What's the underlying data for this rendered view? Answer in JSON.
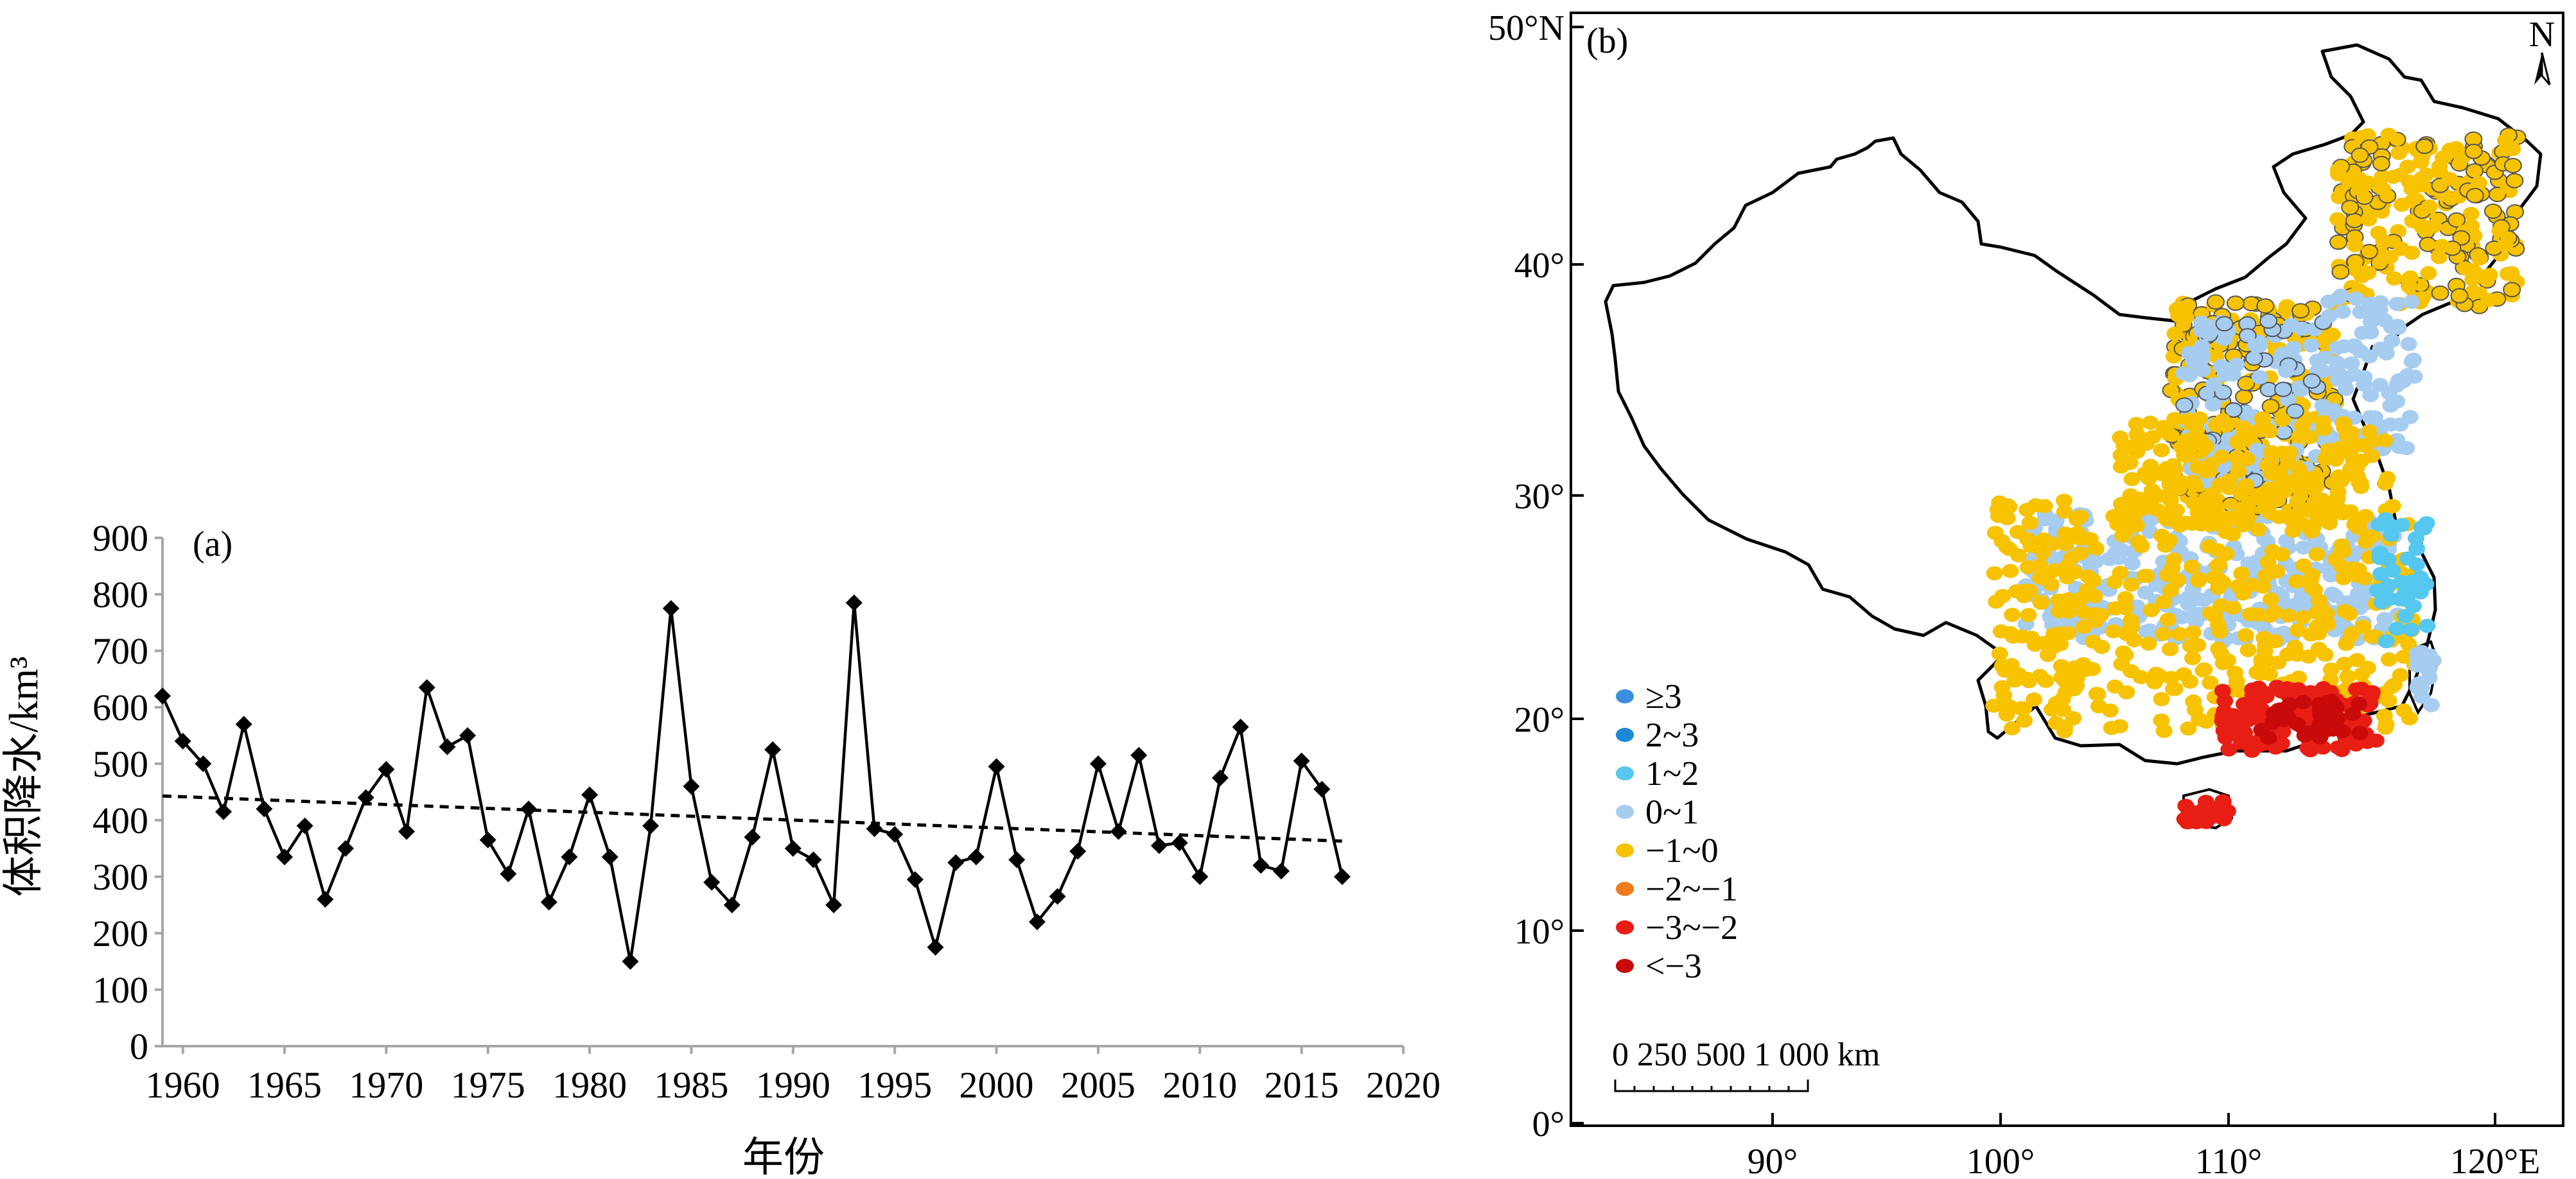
{
  "chart_data": [
    {
      "type": "line",
      "panel_label": "(a)",
      "xlabel": "年份",
      "ylabel": "体积降水/km³",
      "xlim": [
        1959,
        2020
      ],
      "ylim": [
        0,
        900
      ],
      "x_ticks": [
        "1960",
        "1965",
        "1970",
        "1975",
        "1980",
        "1985",
        "1990",
        "1995",
        "2000",
        "2005",
        "2010",
        "2015",
        "2020"
      ],
      "y_ticks": [
        "0",
        "100",
        "200",
        "300",
        "400",
        "500",
        "600",
        "700",
        "800",
        "900"
      ],
      "grid": false,
      "x": [
        1959,
        1960,
        1961,
        1962,
        1963,
        1964,
        1965,
        1966,
        1967,
        1968,
        1969,
        1970,
        1971,
        1972,
        1973,
        1974,
        1975,
        1976,
        1977,
        1978,
        1979,
        1980,
        1981,
        1982,
        1983,
        1984,
        1985,
        1986,
        1987,
        1988,
        1989,
        1990,
        1991,
        1992,
        1993,
        1994,
        1995,
        1996,
        1997,
        1998,
        1999,
        2000,
        2001,
        2002,
        2003,
        2004,
        2005,
        2006,
        2007,
        2008,
        2009,
        2010,
        2011,
        2012,
        2013,
        2014,
        2015,
        2016,
        2017
      ],
      "values": [
        620,
        540,
        500,
        415,
        570,
        420,
        335,
        390,
        260,
        350,
        440,
        490,
        380,
        635,
        530,
        550,
        365,
        305,
        420,
        255,
        335,
        445,
        335,
        150,
        390,
        775,
        460,
        290,
        250,
        370,
        525,
        350,
        330,
        250,
        785,
        385,
        375,
        295,
        175,
        325,
        335,
        495,
        330,
        220,
        265,
        345,
        500,
        380,
        515,
        355,
        360,
        300,
        475,
        565,
        320,
        310,
        505,
        455,
        300
      ],
      "trend": {
        "x": [
          1959,
          2017
        ],
        "y": [
          443,
          363
        ]
      }
    },
    {
      "type": "scatter",
      "panel_label": "(b)",
      "y_ticks": [
        "50°N",
        "40°",
        "30°",
        "20°",
        "10°",
        "0°"
      ],
      "x_ticks": [
        "90°",
        "100°",
        "110°",
        "120°E"
      ],
      "north_label": "N",
      "scale_label": "0 250 500 1 000 km",
      "legend_position": "left",
      "legend": [
        {
          "label": "≥3",
          "color": "#3a8fe0"
        },
        {
          "label": "2~3",
          "color": "#1e88d8"
        },
        {
          "label": "1~2",
          "color": "#56c7ee"
        },
        {
          "label": "0~1",
          "color": "#a6ccf0"
        },
        {
          "label": "−1~0",
          "color": "#f7c300"
        },
        {
          "label": "−2~−1",
          "color": "#f07a1e"
        },
        {
          "label": "−3~−2",
          "color": "#e81e14"
        },
        {
          "label": "<−3",
          "color": "#c80a0a"
        }
      ]
    }
  ]
}
